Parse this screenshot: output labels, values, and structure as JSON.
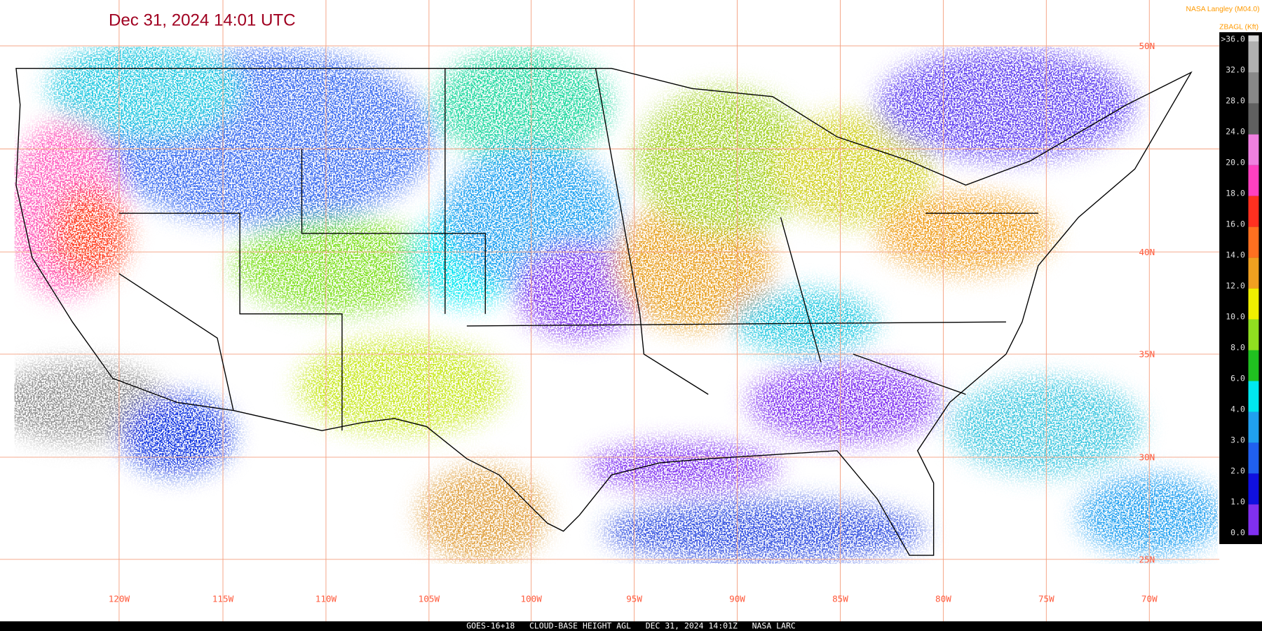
{
  "header": {
    "title": "Dec 31, 2024 14:01 UTC",
    "credit": "NASA Langley (M04.0)"
  },
  "legend": {
    "unit": "ZBAGL (Kft)",
    "labels": [
      ">36.0",
      "32.0",
      "28.0",
      "24.0",
      "20.0",
      "18.0",
      "16.0",
      "14.0",
      "12.0",
      "10.0",
      "8.0",
      "6.0",
      "4.0",
      "3.0",
      "2.0",
      "1.0",
      "0.0"
    ]
  },
  "map": {
    "lon_labels": [
      "120W",
      "115W",
      "110W",
      "105W",
      "100W",
      "95W",
      "90W",
      "85W",
      "80W",
      "75W",
      "70W"
    ],
    "lat_labels": [
      "50N",
      "40N",
      "35N",
      "30N",
      "25N"
    ]
  },
  "footer": {
    "caption": "GOES-16+18   CLOUD-BASE HEIGHT AGL   DEC 31, 2024 14:01Z   NASA LARC"
  }
}
